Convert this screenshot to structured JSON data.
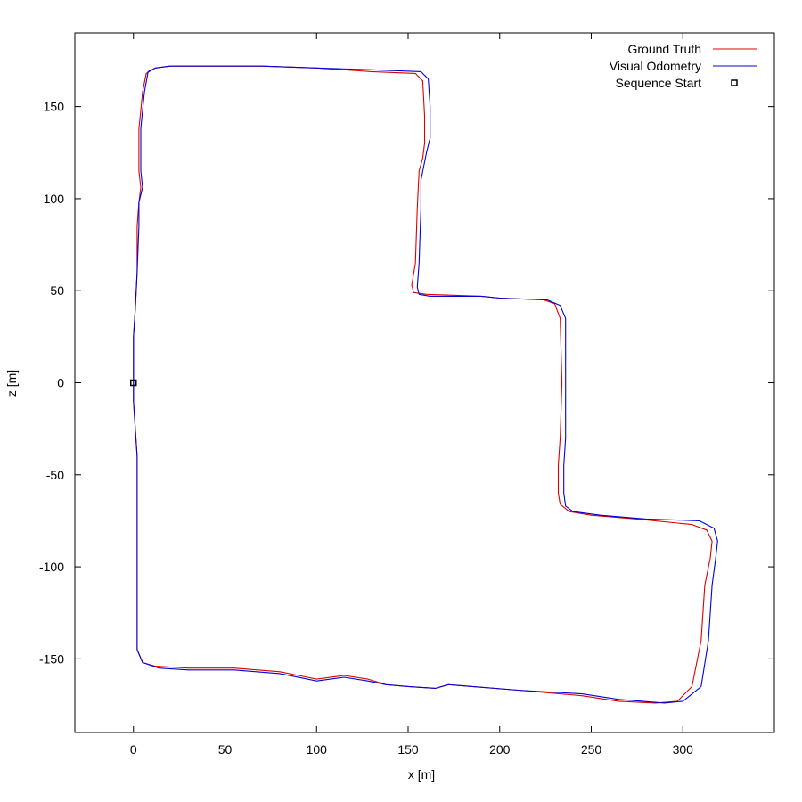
{
  "chart_data": {
    "type": "line",
    "title": "",
    "xlabel": "x [m]",
    "ylabel": "z [m]",
    "xlim": [
      -32,
      350
    ],
    "ylim": [
      -190,
      190
    ],
    "grid": false,
    "legend_position": "top-right",
    "x_ticks": [
      0,
      50,
      100,
      150,
      200,
      250,
      300
    ],
    "y_ticks": [
      -150,
      -100,
      -50,
      0,
      50,
      100,
      150
    ],
    "series": [
      {
        "name": "Ground Truth",
        "color": "#dd0000",
        "points": [
          [
            0,
            0
          ],
          [
            0,
            -10
          ],
          [
            1,
            -25
          ],
          [
            2,
            -40
          ],
          [
            2,
            -80
          ],
          [
            2,
            -120
          ],
          [
            2,
            -145
          ],
          [
            5,
            -152
          ],
          [
            12,
            -154
          ],
          [
            30,
            -155
          ],
          [
            55,
            -155
          ],
          [
            80,
            -157
          ],
          [
            95,
            -160
          ],
          [
            100,
            -161
          ],
          [
            115,
            -159
          ],
          [
            128,
            -161
          ],
          [
            138,
            -164
          ],
          [
            150,
            -165
          ],
          [
            165,
            -166
          ],
          [
            172,
            -164
          ],
          [
            185,
            -165
          ],
          [
            210,
            -167
          ],
          [
            245,
            -170
          ],
          [
            265,
            -173
          ],
          [
            285,
            -174
          ],
          [
            297,
            -173
          ],
          [
            305,
            -165
          ],
          [
            310,
            -140
          ],
          [
            312,
            -110
          ],
          [
            315,
            -95
          ],
          [
            316,
            -86
          ],
          [
            313,
            -80
          ],
          [
            305,
            -77
          ],
          [
            275,
            -74
          ],
          [
            250,
            -72
          ],
          [
            238,
            -70
          ],
          [
            233,
            -66
          ],
          [
            232,
            -60
          ],
          [
            232,
            -45
          ],
          [
            233,
            -30
          ],
          [
            234,
            0
          ],
          [
            233,
            35
          ],
          [
            230,
            43
          ],
          [
            224,
            45
          ],
          [
            200,
            46
          ],
          [
            190,
            47
          ],
          [
            160,
            48
          ],
          [
            153,
            49
          ],
          [
            152,
            53
          ],
          [
            154,
            65
          ],
          [
            155,
            95
          ],
          [
            156,
            115
          ],
          [
            158,
            122
          ],
          [
            159,
            130
          ],
          [
            159,
            145
          ],
          [
            158,
            164
          ],
          [
            154,
            168
          ],
          [
            130,
            169
          ],
          [
            100,
            171
          ],
          [
            70,
            172
          ],
          [
            40,
            172
          ],
          [
            20,
            172
          ],
          [
            12,
            171
          ],
          [
            7,
            168
          ],
          [
            5,
            158
          ],
          [
            4,
            148
          ],
          [
            3,
            138
          ],
          [
            3,
            115
          ],
          [
            4,
            106
          ],
          [
            3,
            98
          ],
          [
            2,
            85
          ],
          [
            2,
            60
          ],
          [
            1,
            40
          ],
          [
            0,
            25
          ],
          [
            0,
            10
          ],
          [
            0,
            0
          ]
        ]
      },
      {
        "name": "Visual Odometry",
        "color": "#0000dd",
        "points": [
          [
            0,
            0
          ],
          [
            0,
            -10
          ],
          [
            1,
            -25
          ],
          [
            2,
            -40
          ],
          [
            2,
            -80
          ],
          [
            2,
            -120
          ],
          [
            2,
            -145
          ],
          [
            5,
            -152
          ],
          [
            14,
            -155
          ],
          [
            30,
            -156
          ],
          [
            55,
            -156
          ],
          [
            80,
            -158
          ],
          [
            95,
            -161
          ],
          [
            100,
            -162
          ],
          [
            115,
            -160
          ],
          [
            128,
            -162
          ],
          [
            138,
            -164
          ],
          [
            150,
            -165
          ],
          [
            165,
            -166
          ],
          [
            172,
            -164
          ],
          [
            185,
            -165
          ],
          [
            210,
            -167
          ],
          [
            245,
            -169
          ],
          [
            265,
            -172
          ],
          [
            290,
            -174
          ],
          [
            300,
            -173
          ],
          [
            310,
            -165
          ],
          [
            314,
            -140
          ],
          [
            316,
            -110
          ],
          [
            318,
            -95
          ],
          [
            319,
            -86
          ],
          [
            317,
            -79
          ],
          [
            309,
            -75
          ],
          [
            280,
            -74
          ],
          [
            255,
            -72
          ],
          [
            240,
            -70
          ],
          [
            236,
            -67
          ],
          [
            235,
            -60
          ],
          [
            235,
            -45
          ],
          [
            236,
            -30
          ],
          [
            236,
            0
          ],
          [
            236,
            35
          ],
          [
            233,
            42
          ],
          [
            226,
            45
          ],
          [
            200,
            46
          ],
          [
            190,
            47
          ],
          [
            162,
            47
          ],
          [
            156,
            48
          ],
          [
            155,
            52
          ],
          [
            156,
            65
          ],
          [
            157,
            95
          ],
          [
            157,
            110
          ],
          [
            160,
            125
          ],
          [
            162,
            133
          ],
          [
            162,
            150
          ],
          [
            161,
            165
          ],
          [
            157,
            169
          ],
          [
            130,
            170
          ],
          [
            100,
            171
          ],
          [
            70,
            172
          ],
          [
            40,
            172
          ],
          [
            20,
            172
          ],
          [
            12,
            171
          ],
          [
            8,
            169
          ],
          [
            6,
            158
          ],
          [
            5,
            148
          ],
          [
            4,
            138
          ],
          [
            4,
            115
          ],
          [
            5,
            106
          ],
          [
            3,
            98
          ],
          [
            3,
            85
          ],
          [
            2,
            60
          ],
          [
            1,
            40
          ],
          [
            0,
            25
          ],
          [
            0,
            10
          ],
          [
            0,
            0
          ]
        ]
      },
      {
        "name": "Sequence Start",
        "color": "#000000",
        "marker": "square",
        "points": [
          [
            0,
            0
          ]
        ]
      }
    ]
  }
}
